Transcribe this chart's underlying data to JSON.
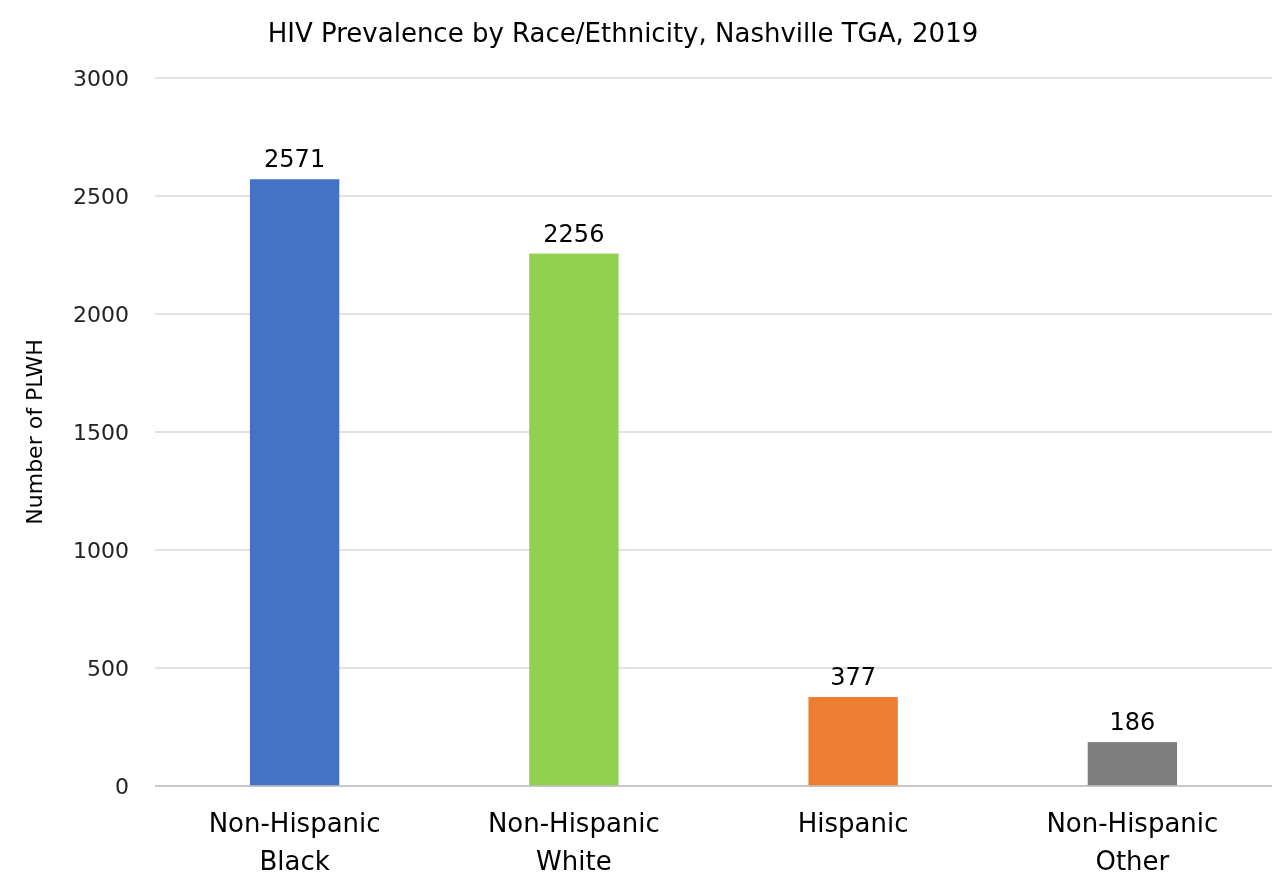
{
  "chart_data": {
    "type": "bar",
    "title": "HIV Prevalence by Race/Ethnicity, Nashville TGA, 2019",
    "ylabel": "Number of PLWH",
    "categories": [
      "Non-Hispanic Black",
      "Non-Hispanic White",
      "Hispanic",
      "Non-Hispanic Other"
    ],
    "values": [
      2571,
      2256,
      377,
      186
    ],
    "colors": [
      "#4472c4",
      "#92d050",
      "#ed7d31",
      "#7f7f7f"
    ],
    "ylim": [
      0,
      3000
    ],
    "yticks": [
      0,
      500,
      1000,
      1500,
      2000,
      2500,
      3000
    ],
    "grid": "y",
    "data_labels": true
  }
}
